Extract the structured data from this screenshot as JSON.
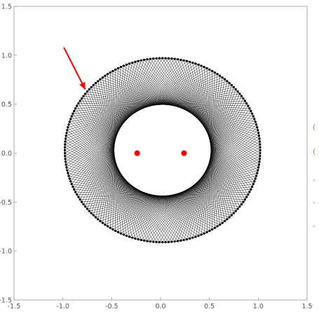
{
  "chart_data": {
    "type": "scatter",
    "title": "",
    "xlabel": "",
    "ylabel": "",
    "xlim": [
      -1.5,
      1.5
    ],
    "ylim": [
      -1.5,
      1.5
    ],
    "x_ticks": [
      -1.5,
      -1.0,
      -0.5,
      0.0,
      0.5,
      1.0,
      1.5
    ],
    "y_ticks": [
      -1.5,
      -1.0,
      -0.5,
      0.0,
      0.5,
      1.0,
      1.5
    ],
    "x_tick_labels": [
      "-1.5",
      "-1.0",
      "-0.5",
      "0.0",
      "0.5",
      "1.0",
      "1.5"
    ],
    "y_tick_labels": [
      "-1.5",
      "-1.0",
      "-0.5",
      "0.0",
      "0.5",
      "1.0",
      "1.5"
    ],
    "grid": false,
    "frame": true,
    "series": [
      {
        "role": "outer-points",
        "color": "#000000",
        "center": [
          0.02,
          0.03
        ],
        "radius_x": 1.0,
        "radius_y": 0.94,
        "point_count": 200
      },
      {
        "role": "chords",
        "color": "#000000",
        "chord_step": 67,
        "inner_hole_radius_x": 0.34,
        "inner_hole_radius_y": 0.25
      },
      {
        "role": "foci",
        "color": "#ff0000",
        "points": [
          [
            -0.24,
            0.0
          ],
          [
            0.24,
            0.0
          ]
        ]
      }
    ],
    "annotations": [
      {
        "type": "arrow",
        "color": "#ff0000",
        "from": [
          -0.99,
          1.08
        ],
        "to": [
          -0.77,
          0.65
        ]
      }
    ]
  },
  "edge_marks": [
    "(",
    "(",
    "-",
    "-",
    "-"
  ]
}
